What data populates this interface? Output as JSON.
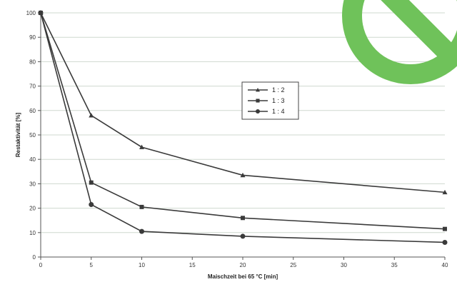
{
  "chart_data": {
    "type": "line",
    "title": "",
    "xlabel": "Maischzeit bei 65 °C [min]",
    "ylabel": "Restaktivität [%]",
    "xlim": [
      0,
      40
    ],
    "ylim": [
      0,
      100
    ],
    "x_ticks": [
      0,
      5,
      10,
      15,
      20,
      25,
      30,
      35,
      40
    ],
    "y_ticks": [
      0,
      10,
      20,
      30,
      40,
      50,
      60,
      70,
      80,
      90,
      100
    ],
    "grid": true,
    "legend_position": "upper-center-right",
    "series": [
      {
        "name": "1 : 2",
        "marker": "triangle",
        "x": [
          0,
          5,
          10,
          20,
          40
        ],
        "y": [
          100,
          58,
          45,
          33.5,
          26.5
        ]
      },
      {
        "name": "1 : 3",
        "marker": "square",
        "x": [
          0,
          5,
          10,
          20,
          40
        ],
        "y": [
          100,
          30.5,
          20.5,
          16,
          11.5
        ]
      },
      {
        "name": "1 : 4",
        "marker": "circle",
        "x": [
          0,
          5,
          10,
          20,
          40
        ],
        "y": [
          100,
          21.5,
          10.5,
          8.5,
          6
        ]
      }
    ],
    "colors": {
      "line": "#3a3a3a",
      "grid": "#cfd8cf",
      "watermark": "#6fc25a"
    }
  }
}
